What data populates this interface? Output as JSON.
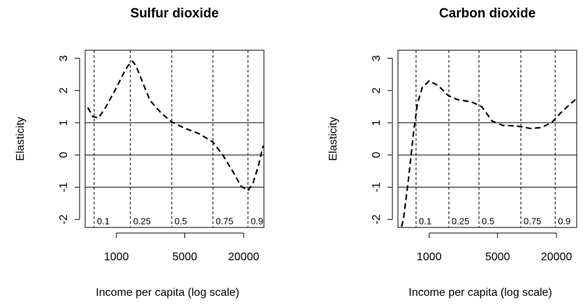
{
  "chart_data": [
    {
      "type": "line",
      "title": "Sulfur dioxide",
      "xlabel": "Income per capita (log scale)",
      "ylabel": "Elasticity",
      "x": [
        510,
        575,
        655,
        760,
        970,
        1240,
        1390,
        1460,
        1590,
        1875,
        2210,
        2830,
        3620,
        5000,
        7000,
        9700,
        12400,
        15900,
        18700,
        22100,
        24800,
        28200,
        31700
      ],
      "values": [
        1.47,
        1.19,
        1.15,
        1.43,
        2.01,
        2.65,
        2.87,
        2.91,
        2.76,
        2.22,
        1.69,
        1.32,
        1.04,
        0.83,
        0.66,
        0.4,
        -0.03,
        -0.57,
        -0.96,
        -1.11,
        -0.89,
        -0.35,
        0.29
      ],
      "color": "#000000",
      "line_style": "dashed",
      "log_x": true,
      "xlim": [
        480,
        32200
      ],
      "ylim": [
        -2.25,
        3.25
      ],
      "xticks": [
        1000,
        5000,
        20000
      ],
      "yticks": [
        -2,
        -1,
        0,
        1,
        2,
        3
      ],
      "hlines": [
        1,
        0,
        -1
      ],
      "vlines": [
        {
          "x": 593,
          "label": "0.1"
        },
        {
          "x": 1390,
          "label": "0.25"
        },
        {
          "x": 3680,
          "label": "0.5"
        },
        {
          "x": 9700,
          "label": "0.75"
        },
        {
          "x": 22100,
          "label": "0.9"
        }
      ]
    },
    {
      "type": "line",
      "title": "Carbon dioxide",
      "xlabel": "Income per capita (log scale)",
      "ylabel": "Elasticity",
      "x": [
        495,
        546,
        612,
        687,
        759,
        851,
        1000,
        1240,
        1560,
        1940,
        2690,
        3440,
        4410,
        5640,
        7830,
        10900,
        13900,
        17800,
        22800,
        32000
      ],
      "values": [
        -2.5,
        -2.0,
        -0.8,
        0.6,
        1.6,
        2.1,
        2.3,
        2.15,
        1.85,
        1.72,
        1.65,
        1.5,
        1.05,
        0.92,
        0.9,
        0.82,
        0.85,
        1.0,
        1.35,
        1.75
      ],
      "color": "#000000",
      "line_style": "dashed",
      "log_x": true,
      "xlim": [
        480,
        32200
      ],
      "ylim": [
        -2.25,
        3.25
      ],
      "xticks": [
        1000,
        5000,
        20000
      ],
      "yticks": [
        -2,
        -1,
        0,
        1,
        2,
        3
      ],
      "hlines": [
        1,
        0,
        -1
      ],
      "vlines": [
        {
          "x": 735,
          "label": "0.1"
        },
        {
          "x": 1590,
          "label": "0.25"
        },
        {
          "x": 3230,
          "label": "0.5"
        },
        {
          "x": 8650,
          "label": "0.75"
        },
        {
          "x": 19400,
          "label": "0.9"
        }
      ]
    }
  ]
}
